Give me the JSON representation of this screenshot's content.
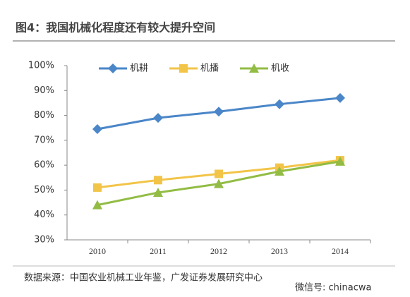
{
  "chart_data": {
    "type": "line",
    "title": "图4：我国机械化程度还有较大提升空间",
    "categories": [
      "2010",
      "2011",
      "2012",
      "2013",
      "2014"
    ],
    "series": [
      {
        "name": "机耕",
        "color": "#4a86c8",
        "marker": "diamond",
        "values": [
          74.5,
          79,
          81.5,
          84.5,
          87
        ]
      },
      {
        "name": "机播",
        "color": "#f2c448",
        "marker": "square",
        "values": [
          51,
          54,
          56.5,
          59,
          62
        ]
      },
      {
        "name": "机收",
        "color": "#92bc44",
        "marker": "triangle",
        "values": [
          44,
          49,
          52.5,
          57.5,
          61.5
        ]
      }
    ],
    "ylim": [
      30,
      100
    ],
    "yticks": [
      {
        "value": 30,
        "label": "30%"
      },
      {
        "value": 40,
        "label": "40%"
      },
      {
        "value": 50,
        "label": "50%"
      },
      {
        "value": 60,
        "label": "60%"
      },
      {
        "value": 70,
        "label": "70%"
      },
      {
        "value": 80,
        "label": "80%"
      },
      {
        "value": 90,
        "label": "90%"
      },
      {
        "value": 100,
        "label": "100%"
      }
    ],
    "grid": false,
    "legend": "top",
    "source": "数据来源：中国农业机械工业年鉴，广发证券发展研究中心",
    "watermark": "微信号: chinacwa"
  }
}
